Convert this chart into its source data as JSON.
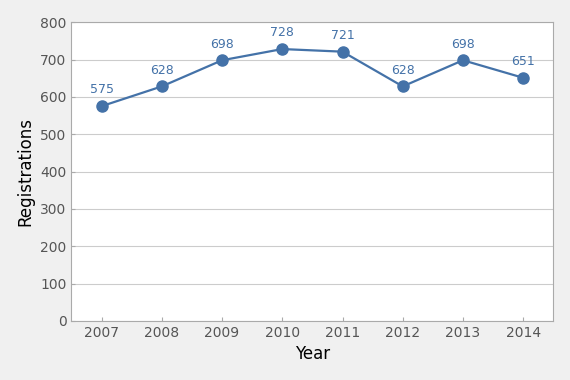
{
  "years": [
    2007,
    2008,
    2009,
    2010,
    2011,
    2012,
    2013,
    2014
  ],
  "values": [
    575,
    628,
    698,
    728,
    721,
    628,
    698,
    651
  ],
  "line_color": "#4472a8",
  "marker_color": "#4472a8",
  "xlabel": "Year",
  "ylabel": "Registrations",
  "ylim": [
    0,
    800
  ],
  "yticks": [
    0,
    100,
    200,
    300,
    400,
    500,
    600,
    700,
    800
  ],
  "outer_bg_color": "#f0f0f0",
  "plot_bg_color": "#ffffff",
  "grid_color": "#cccccc",
  "spine_color": "#aaaaaa",
  "tick_color": "#555555",
  "label_fontsize": 10,
  "axis_label_fontsize": 12,
  "annotation_fontsize": 9,
  "line_width": 1.6,
  "marker_size": 8
}
